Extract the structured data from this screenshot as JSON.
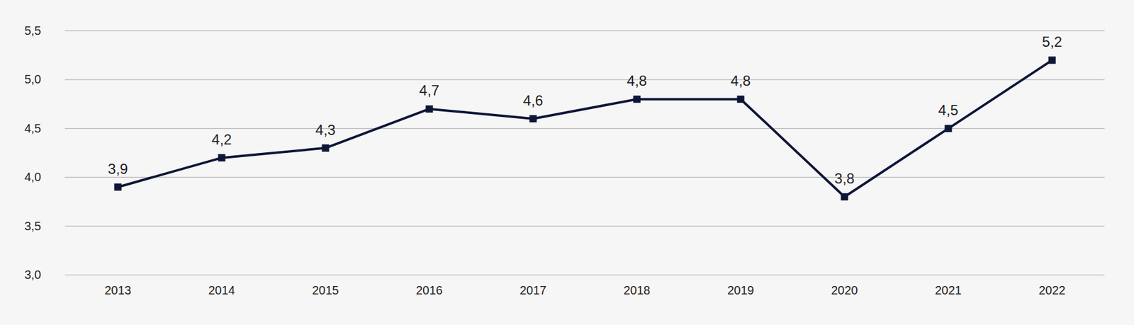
{
  "chart_data": {
    "type": "line",
    "categories": [
      "2013",
      "2014",
      "2015",
      "2016",
      "2017",
      "2018",
      "2019",
      "2020",
      "2021",
      "2022"
    ],
    "values": [
      3.9,
      4.2,
      4.3,
      4.7,
      4.6,
      4.8,
      4.8,
      3.8,
      4.5,
      5.2
    ],
    "value_labels": [
      "3,9",
      "4,2",
      "4,3",
      "4,7",
      "4,6",
      "4,8",
      "4,8",
      "3,8",
      "4,5",
      "5,2"
    ],
    "color": "#0e1638",
    "marker": "square",
    "line_style": "solid",
    "ylim": [
      3.0,
      5.5
    ],
    "yticks": [
      {
        "value": 3.0,
        "label": "3,0"
      },
      {
        "value": 3.5,
        "label": "3,5"
      },
      {
        "value": 4.0,
        "label": "4,0"
      },
      {
        "value": 4.5,
        "label": "4,5"
      },
      {
        "value": 5.0,
        "label": "5,0"
      },
      {
        "value": 5.5,
        "label": "5,5"
      }
    ],
    "grid": true,
    "data_labels": true
  }
}
